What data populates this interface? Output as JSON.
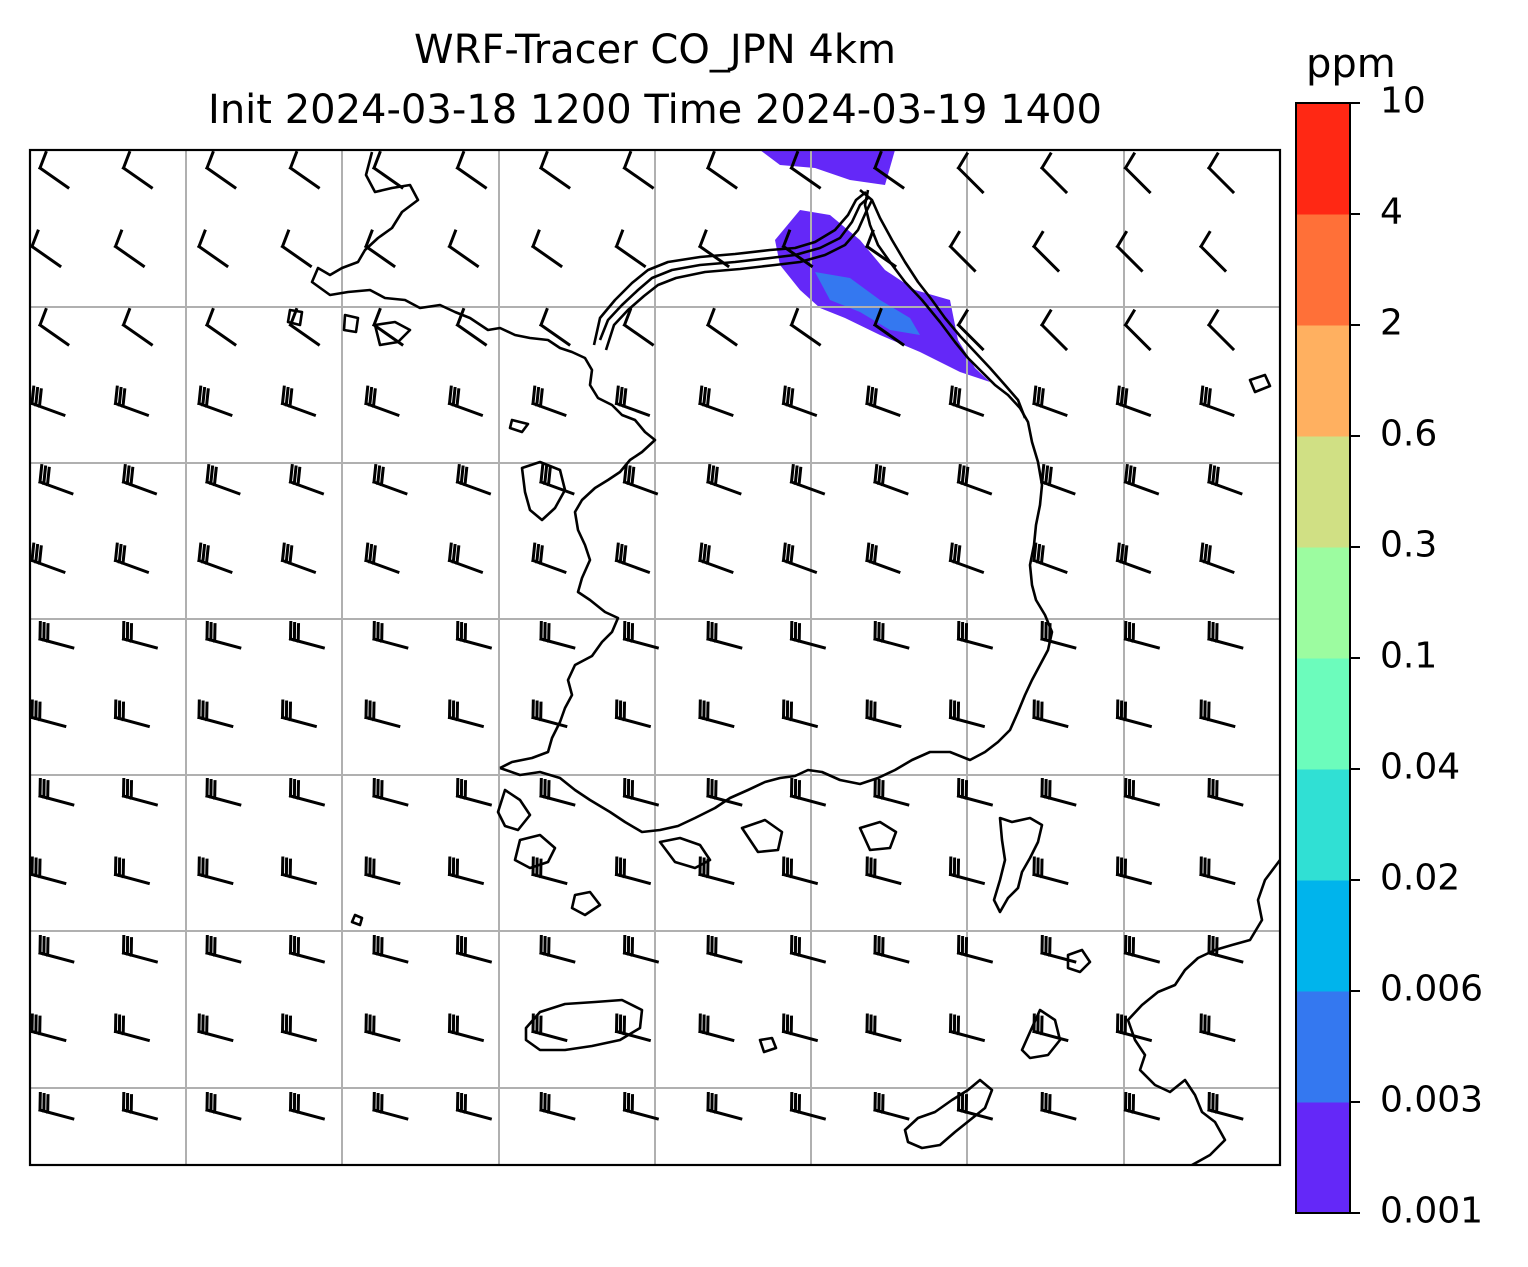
{
  "title_line1": "WRF-Tracer CO_JPN 4km",
  "title_line2": "Init 2024-03-18 1200 Time 2024-03-19 1400",
  "colorbar": {
    "unit": "ppm",
    "levels": [
      "0.001",
      "0.003",
      "0.006",
      "0.02",
      "0.04",
      "0.1",
      "0.3",
      "0.6",
      "2",
      "4",
      "10"
    ],
    "colors": [
      "#6428f8",
      "#3478f0",
      "#00b4ec",
      "#30e0d4",
      "#6cfcbc",
      "#9cfca0",
      "#d0e084",
      "#ffb060",
      "#ff7038",
      "#ff2814"
    ]
  },
  "map": {
    "grid_lines": "on",
    "features": [
      "coastline",
      "wind-barbs",
      "CO-concentration-contours",
      "lat-lon-gridlines"
    ],
    "wind_barb_color": "#000000",
    "grid_color": "#b0b0b0"
  }
}
